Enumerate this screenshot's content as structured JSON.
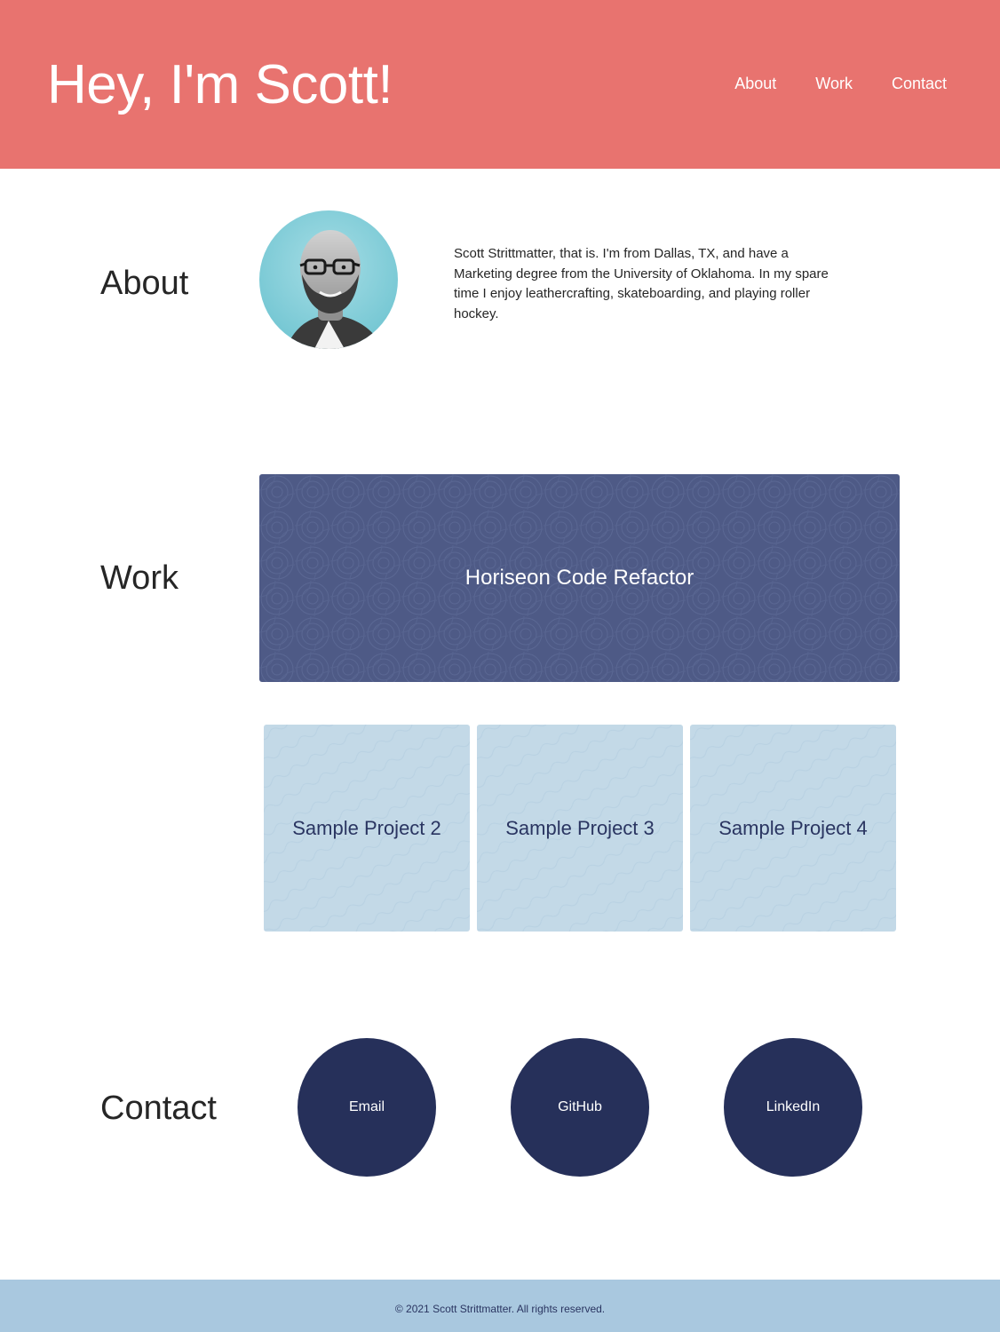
{
  "header": {
    "title": "Hey, I'm Scott!",
    "nav": [
      "About",
      "Work",
      "Contact"
    ]
  },
  "about": {
    "heading": "About",
    "bio": "Scott Strittmatter, that is. I'm from Dallas, TX, and have a Marketing degree from the University of Oklahoma. In my spare time I enjoy leathercrafting, skateboarding, and playing roller hockey."
  },
  "work": {
    "heading": "Work",
    "featured": "Horiseon Code Refactor",
    "projects": [
      "Sample Project 2",
      "Sample Project 3",
      "Sample Project 4"
    ]
  },
  "contact": {
    "heading": "Contact",
    "links": [
      "Email",
      "GitHub",
      "LinkedIn"
    ]
  },
  "footer": {
    "text": "© 2021 Scott Strittmatter. All rights reserved."
  },
  "colors": {
    "header_bg": "#e8736f",
    "featured_bg": "#4e5a86",
    "card_bg": "#c3d9e7",
    "contact_bg": "#26305a",
    "footer_bg": "#a9c8df"
  },
  "icons": {
    "avatar": "profile-photo"
  }
}
